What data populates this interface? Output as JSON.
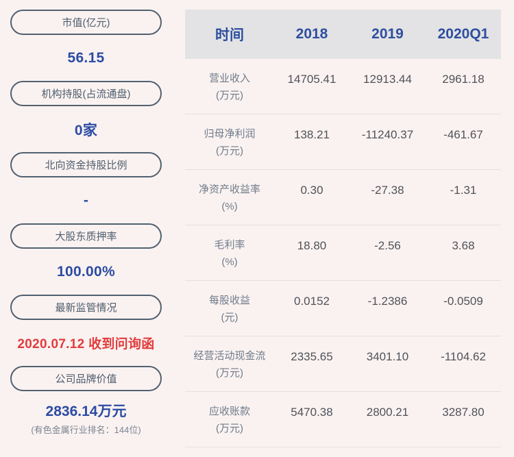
{
  "colors": {
    "background": "#faf2f1",
    "accent_blue": "#2b4ba3",
    "alert_red": "#e23b3b",
    "pill_border": "#51606f",
    "header_bg": "#e3e3e5"
  },
  "sidebar": {
    "items": [
      {
        "label": "市值(亿元)",
        "value": "56.15"
      },
      {
        "label": "机构持股(占流通盘)",
        "value": "0家"
      },
      {
        "label": "北向资金持股比例",
        "value": "-"
      },
      {
        "label": "大股东质押率",
        "value": "100.00%"
      },
      {
        "label": "最新监管情况",
        "value": "2020.07.12 收到问询函"
      },
      {
        "label": "公司品牌价值",
        "value": "2836.14万元",
        "note": "(有色金属行业排名：144位)"
      }
    ]
  },
  "table": {
    "columns": [
      "时间",
      "2018",
      "2019",
      "2020Q1"
    ],
    "rows": [
      {
        "name": "营业收入",
        "unit": "(万元)",
        "values": [
          "14705.41",
          "12913.44",
          "2961.18"
        ]
      },
      {
        "name": "归母净利润",
        "unit": "(万元)",
        "values": [
          "138.21",
          "-11240.37",
          "-461.67"
        ]
      },
      {
        "name": "净资产收益率",
        "unit": "(%)",
        "values": [
          "0.30",
          "-27.38",
          "-1.31"
        ]
      },
      {
        "name": "毛利率",
        "unit": "(%)",
        "values": [
          "18.80",
          "-2.56",
          "3.68"
        ]
      },
      {
        "name": "每股收益",
        "unit": "(元)",
        "values": [
          "0.0152",
          "-1.2386",
          "-0.0509"
        ]
      },
      {
        "name": "经营活动现金流",
        "unit": "(万元)",
        "values": [
          "2335.65",
          "3401.10",
          "-1104.62"
        ]
      },
      {
        "name": "应收账款",
        "unit": "(万元)",
        "values": [
          "5470.38",
          "2800.21",
          "3287.80"
        ]
      }
    ]
  }
}
